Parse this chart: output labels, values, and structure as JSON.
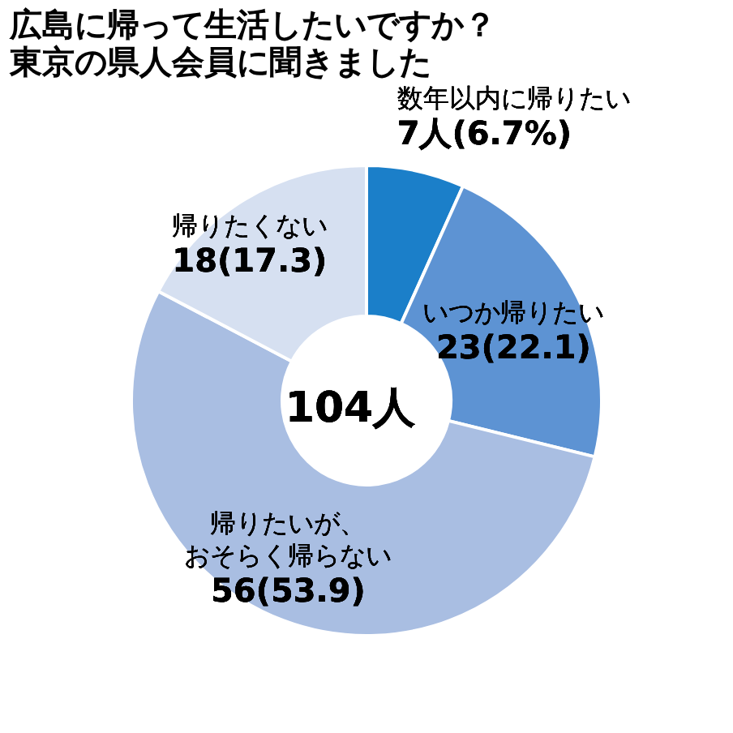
{
  "chart_data": {
    "type": "donut",
    "title": "広島に帰って生活したいですか？",
    "subtitle": "東京の県人会員に聞きました",
    "categories": [
      "数年以内に帰りたい",
      "いつか帰りたい",
      "帰りたいが、おそらく帰らない",
      "帰りたくない"
    ],
    "values": [
      7,
      23,
      56,
      18
    ],
    "value_labels": [
      "7人(6.7%)",
      "23(22.1)",
      "56(53.9)",
      "18(17.3)"
    ],
    "colors": [
      "#1b7fc9",
      "#5d93d3",
      "#a9bee2",
      "#d6e0f1"
    ],
    "annotations": [
      "104人"
    ],
    "legend": false
  }
}
